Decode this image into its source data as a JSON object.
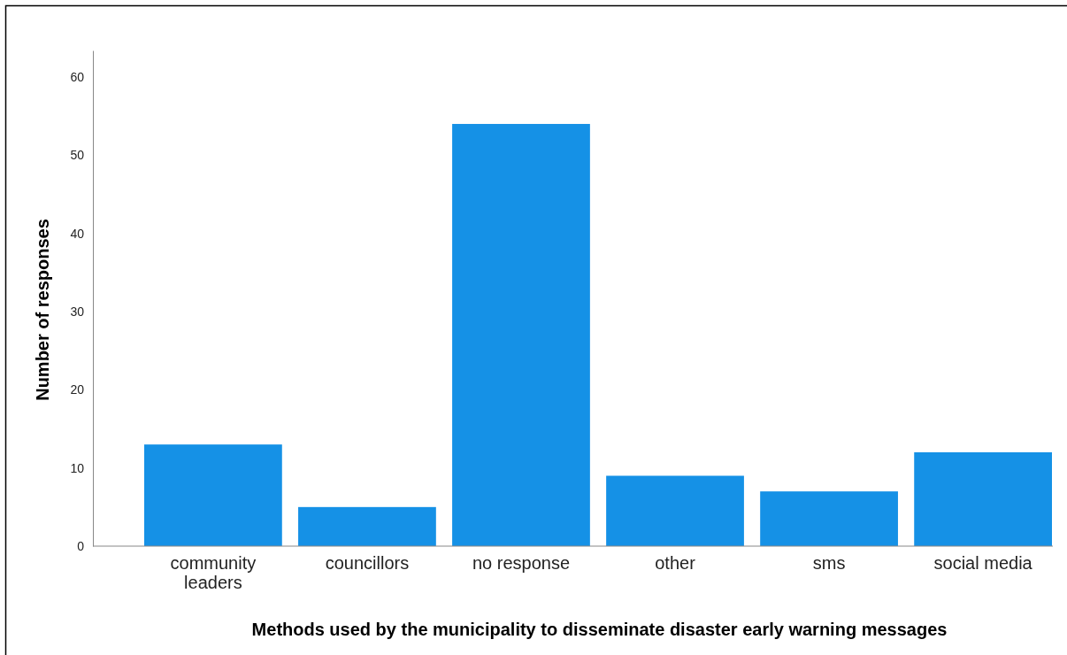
{
  "chart_data": {
    "type": "bar",
    "xlabel": "Methods used by the municipality to disseminate disaster early warning messages",
    "ylabel": "Number of responses",
    "categories": [
      "community leaders",
      "councillors",
      "no response",
      "other",
      "sms",
      "social media"
    ],
    "values": [
      13,
      5,
      54,
      9,
      7,
      12
    ],
    "color": "#1591e6",
    "ylim": [
      0,
      63.4
    ],
    "yticks": [
      0,
      10,
      20,
      30,
      40,
      50,
      60
    ],
    "grid": false
  }
}
